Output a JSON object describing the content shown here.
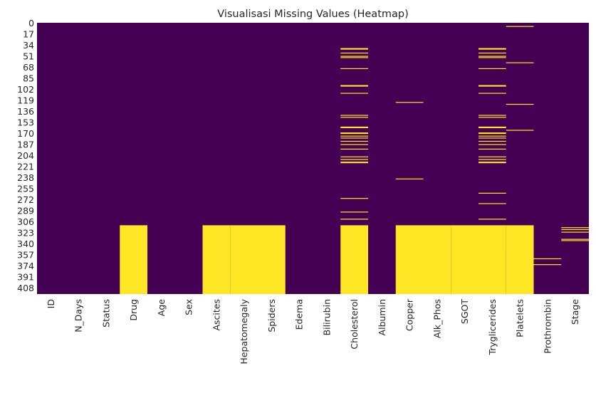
{
  "chart_data": {
    "type": "heatmap",
    "title": "Visualisasi Missing Values (Heatmap)",
    "xlabel": "",
    "ylabel": "",
    "colormap": "viridis",
    "colors": {
      "present": "#440154",
      "missing": "#fde725"
    },
    "n_rows": 418,
    "columns": [
      "ID",
      "N_Days",
      "Status",
      "Drug",
      "Age",
      "Sex",
      "Ascites",
      "Hepatomegaly",
      "Spiders",
      "Edema",
      "Bilirubin",
      "Cholesterol",
      "Albumin",
      "Copper",
      "Alk_Phos",
      "SGOT",
      "Tryglicerides",
      "Platelets",
      "Prothrombin",
      "Stage"
    ],
    "y_ticks": [
      0,
      17,
      34,
      51,
      68,
      85,
      102,
      119,
      136,
      153,
      170,
      187,
      204,
      221,
      238,
      255,
      272,
      289,
      306,
      323,
      340,
      357,
      374,
      391,
      408
    ],
    "y_tick_labels": [
      "0",
      "17",
      "34",
      "51",
      "68",
      "85",
      "102",
      "119",
      "136",
      "153",
      "170",
      "187",
      "204",
      "221",
      "238",
      "255",
      "272",
      "289",
      "306",
      "323",
      "340",
      "357",
      "374",
      "391",
      "408"
    ],
    "missing_blocks": [
      {
        "column": "Drug",
        "row_start": 312,
        "row_end": 417
      },
      {
        "column": "Ascites",
        "row_start": 312,
        "row_end": 417
      },
      {
        "column": "Hepatomegaly",
        "row_start": 312,
        "row_end": 417
      },
      {
        "column": "Spiders",
        "row_start": 312,
        "row_end": 417
      },
      {
        "column": "Cholesterol",
        "row_start": 312,
        "row_end": 417
      },
      {
        "column": "Copper",
        "row_start": 312,
        "row_end": 417
      },
      {
        "column": "Alk_Phos",
        "row_start": 312,
        "row_end": 417
      },
      {
        "column": "SGOT",
        "row_start": 312,
        "row_end": 417
      },
      {
        "column": "Tryglicerides",
        "row_start": 312,
        "row_end": 417
      },
      {
        "column": "Platelets",
        "row_start": 312,
        "row_end": 417
      }
    ],
    "missing_rows": [
      {
        "column": "Cholesterol",
        "rows": [
          39,
          40,
          46,
          51,
          53,
          70,
          96,
          97,
          108,
          142,
          145,
          160,
          161,
          169,
          170,
          174,
          177,
          182,
          187,
          194,
          206,
          210,
          214,
          215,
          270,
          291,
          302
        ]
      },
      {
        "column": "Copper",
        "rows": [
          122,
          240
        ]
      },
      {
        "column": "Tryglicerides",
        "rows": [
          39,
          40,
          46,
          51,
          53,
          70,
          96,
          97,
          108,
          142,
          145,
          160,
          161,
          169,
          170,
          174,
          177,
          182,
          187,
          194,
          206,
          210,
          214,
          215,
          262,
          278,
          302
        ]
      },
      {
        "column": "Platelets",
        "rows": [
          5,
          61,
          125,
          165,
          322,
          327,
          332,
          334,
          338,
          349
        ]
      },
      {
        "column": "Prothrombin",
        "rows": [
          363,
          372
        ]
      },
      {
        "column": "Stage",
        "rows": [
          315,
          318,
          322,
          333,
          335
        ]
      }
    ]
  }
}
